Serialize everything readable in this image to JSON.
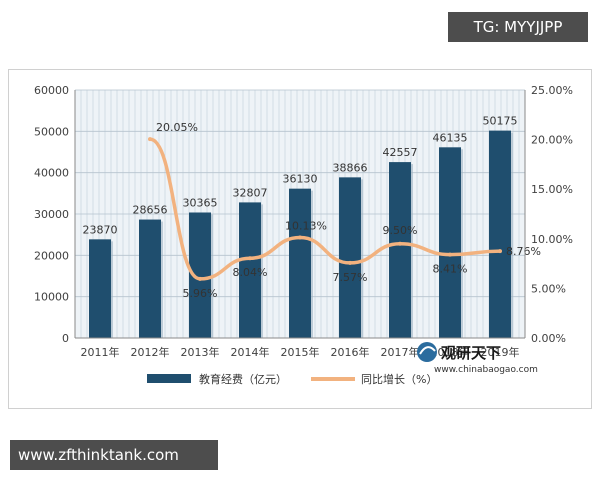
{
  "header_tag": "TG: MYYJJPP",
  "footer_url": "www.zfthinktank.com",
  "watermark": {
    "brand": "观研天下",
    "site": "www.chinabaogao.com"
  },
  "colors": {
    "bar": "#1f4e6e",
    "line": "#f2b27f",
    "grid": "#c8d4dd",
    "plot_bg": "#eef3f7"
  },
  "chart_data": {
    "type": "bar",
    "categories": [
      "2011年",
      "2012年",
      "2013年",
      "2014年",
      "2015年",
      "2016年",
      "2017年",
      "2018年",
      "2019年"
    ],
    "series": [
      {
        "name": "教育经费（亿元）",
        "kind": "bar",
        "axis": "left",
        "values": [
          23870,
          28656,
          30365,
          32807,
          36130,
          38866,
          42557,
          46135,
          50175
        ]
      },
      {
        "name": "同比增长（%）",
        "kind": "line",
        "axis": "right",
        "values": [
          null,
          20.05,
          5.96,
          8.04,
          10.13,
          7.57,
          9.5,
          8.41,
          8.76
        ],
        "labels": [
          "",
          "20.05%",
          "5.96%",
          "8.04%",
          "10.13%",
          "7.57%",
          "9.50%",
          "8.41%",
          "8.76%"
        ]
      }
    ],
    "y_left": {
      "lim": [
        0,
        60000
      ],
      "ticks": [
        "0",
        "10000",
        "20000",
        "30000",
        "40000",
        "50000",
        "60000"
      ]
    },
    "y_right": {
      "lim": [
        0,
        25
      ],
      "ticks": [
        "0.00%",
        "5.00%",
        "10.00%",
        "15.00%",
        "20.00%",
        "25.00%"
      ]
    },
    "grid": true,
    "legend_position": "bottom"
  }
}
